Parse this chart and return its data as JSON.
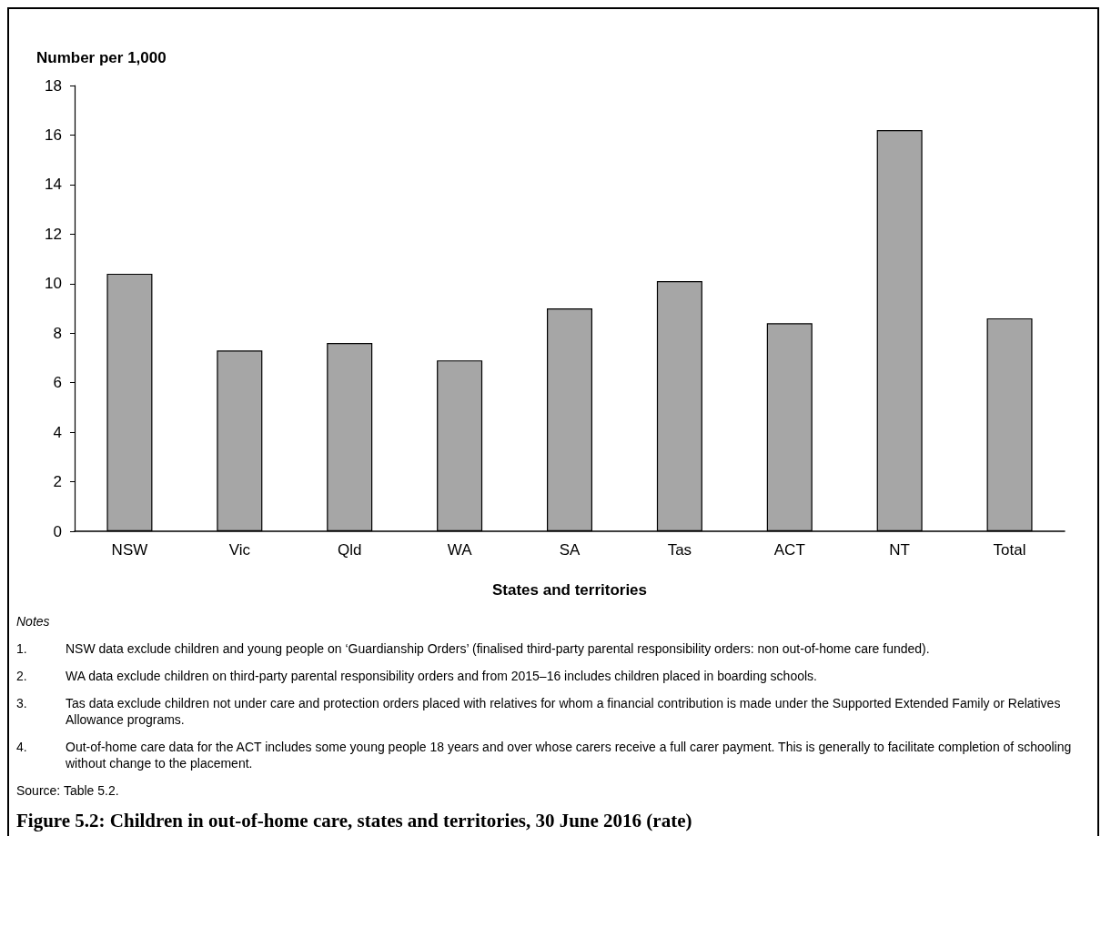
{
  "chart_data": {
    "type": "bar",
    "title": "Figure 5.2: Children in out-of-home care, states and territories, 30 June 2016 (rate)",
    "xlabel": "States and territories",
    "ylabel": "Number per 1,000",
    "categories": [
      "NSW",
      "Vic",
      "Qld",
      "WA",
      "SA",
      "Tas",
      "ACT",
      "NT",
      "Total"
    ],
    "values": [
      10.4,
      7.3,
      7.6,
      6.9,
      9.0,
      10.1,
      8.4,
      16.2,
      8.6
    ],
    "color": "#a6a6a6",
    "ylim": [
      0,
      18
    ],
    "yticks": [
      0,
      2,
      4,
      6,
      8,
      10,
      12,
      14,
      16,
      18
    ],
    "grid": false,
    "annotations": [
      "Notes",
      "1.\tNSW data exclude children and young people on ‘Guardianship Orders’ (finalised third-party parental responsibility orders: non out-of-home care funded).",
      "2.\tWA data exclude children on third-party parental responsibility orders and from 2015–16 includes children placed in boarding schools.",
      "3.\tTas data exclude children not under care and protection orders placed with relatives for whom a financial contribution is made under the Supported Extended Family or Relatives Allowance programs.",
      "4.\tOut-of-home care data for the ACT includes some young people 18 years and over whose carers receive a full carer payment. This is generally to facilitate completion of schooling without change to the placement.",
      "Source: Table 5.2."
    ]
  }
}
